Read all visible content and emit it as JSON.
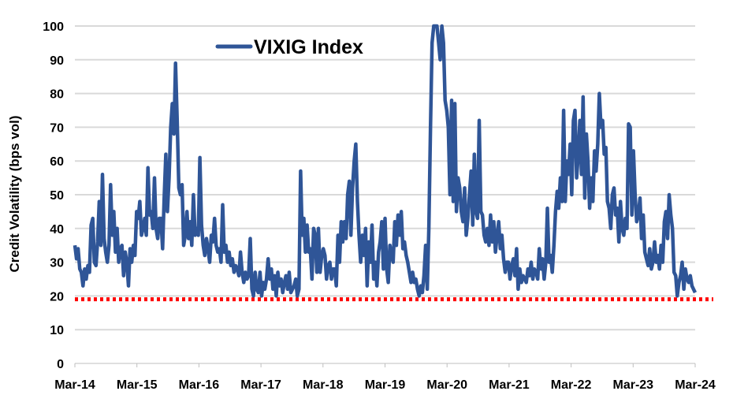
{
  "chart_data": {
    "type": "line",
    "title": "",
    "xlabel": "",
    "ylabel": "Credit Volatility (bps vol)",
    "ylim": [
      0,
      100
    ],
    "yticks": [
      "0",
      "10",
      "20",
      "30",
      "40",
      "50",
      "60",
      "70",
      "80",
      "90",
      "100"
    ],
    "x_range": [
      2014.17,
      2024.17
    ],
    "xticks": [
      "Mar-14",
      "Mar-15",
      "Mar-16",
      "Mar-17",
      "Mar-18",
      "Mar-19",
      "Mar-20",
      "Mar-21",
      "Mar-22",
      "Mar-23",
      "Mar-24"
    ],
    "grid": true,
    "legend_position": "top-center",
    "threshold": {
      "value": 19,
      "color": "#ff0000",
      "style": "dotted"
    },
    "series": [
      {
        "name": "VIXIG Index",
        "color": "#2f5597",
        "values": [
          35,
          31,
          34,
          28,
          27,
          23,
          28,
          25,
          29,
          27,
          41,
          43,
          30,
          29,
          36,
          48,
          35,
          56,
          37,
          33,
          30,
          35,
          53,
          38,
          45,
          33,
          40,
          30,
          34,
          35,
          26,
          33,
          30,
          23,
          34,
          30,
          35,
          32,
          45,
          43,
          48,
          38,
          40,
          43,
          38,
          58,
          44,
          45,
          40,
          55,
          40,
          37,
          43,
          43,
          34,
          49,
          62,
          45,
          55,
          70,
          77,
          68,
          89,
          72,
          52,
          50,
          53,
          35,
          38,
          45,
          37,
          42,
          35,
          50,
          38,
          40,
          38,
          61,
          41,
          35,
          32,
          37,
          34,
          30,
          38,
          36,
          43,
          35,
          33,
          34,
          30,
          47,
          33,
          35,
          30,
          33,
          29,
          31,
          27,
          29,
          28,
          26,
          33,
          27,
          24,
          27,
          25,
          26,
          37,
          22,
          20,
          27,
          22,
          21,
          27,
          20,
          24,
          22,
          25,
          31,
          25,
          28,
          22,
          26,
          20,
          27,
          23,
          25,
          21,
          24,
          26,
          22,
          27,
          21,
          22,
          23,
          25,
          20,
          22,
          57,
          38,
          43,
          33,
          41,
          33,
          34,
          25,
          40,
          38,
          27,
          40,
          27,
          32,
          34,
          32,
          25,
          29,
          30,
          25,
          28,
          28,
          23,
          38,
          30,
          42,
          36,
          42,
          37,
          50,
          54,
          38,
          52,
          60,
          65,
          48,
          38,
          30,
          38,
          32,
          40,
          23,
          36,
          30,
          41,
          25,
          30,
          23,
          33,
          36,
          42,
          28,
          43,
          28,
          24,
          35,
          32,
          30,
          42,
          35,
          44,
          38,
          45,
          34,
          36,
          32,
          30,
          27,
          24,
          27,
          24,
          25,
          22,
          20,
          23,
          21,
          26,
          35,
          22,
          40,
          70,
          95,
          100,
          100,
          100,
          95,
          90,
          100,
          95,
          78,
          75,
          70,
          50,
          78,
          48,
          77,
          45,
          55,
          52,
          45,
          42,
          52,
          38,
          43,
          50,
          57,
          41,
          62,
          45,
          43,
          72,
          45,
          44,
          38,
          36,
          40,
          35,
          44,
          36,
          42,
          33,
          38,
          42,
          34,
          38,
          31,
          27,
          30,
          30,
          25,
          29,
          31,
          26,
          34,
          22,
          28,
          24,
          26,
          25,
          24,
          28,
          26,
          30,
          25,
          28,
          27,
          25,
          34,
          28,
          31,
          25,
          30,
          46,
          30,
          32,
          27,
          35,
          45,
          51,
          46,
          55,
          48,
          75,
          48,
          60,
          56,
          65,
          50,
          72,
          75,
          55,
          62,
          72,
          56,
          79,
          49,
          68,
          60,
          46,
          55,
          48,
          63,
          57,
          65,
          80,
          70,
          72,
          62,
          64,
          48,
          46,
          40,
          50,
          52,
          44,
          46,
          36,
          48,
          40,
          38,
          43,
          40,
          71,
          70,
          44,
          63,
          50,
          42,
          44,
          49,
          37,
          44,
          33,
          31,
          29,
          34,
          28,
          30,
          36,
          30,
          32,
          28,
          35,
          30,
          42,
          45,
          37,
          50,
          44,
          40,
          27,
          26,
          20,
          24,
          26,
          30,
          22,
          28,
          25,
          24,
          26,
          23,
          22,
          21
        ]
      }
    ]
  }
}
